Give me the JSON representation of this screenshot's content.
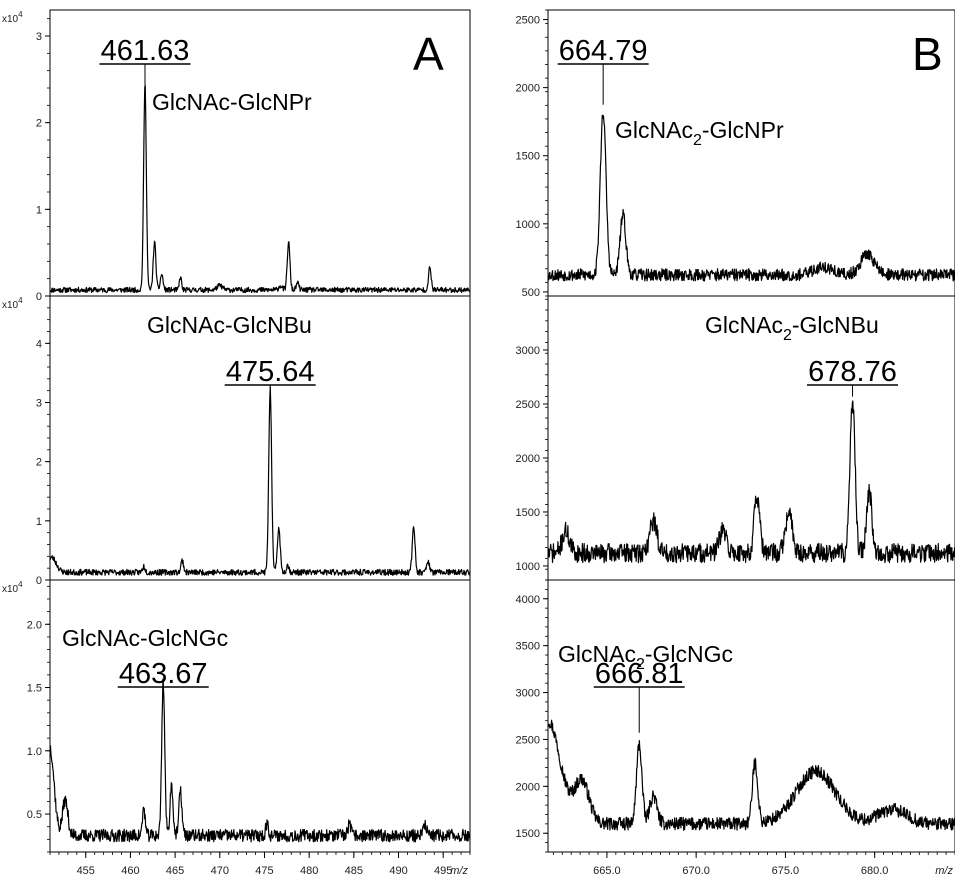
{
  "panel_letters": [
    "A",
    "B"
  ],
  "chart_data": [
    {
      "type": "line",
      "panel": "A",
      "row": 0,
      "xlim": [
        451,
        498
      ],
      "ylim": [
        0,
        3.3
      ],
      "y_multiplier": "x10",
      "y_exponent": "4",
      "yticks": [
        0,
        1,
        2,
        3
      ],
      "ytick_labels": [
        "0",
        "1",
        "2",
        "3"
      ],
      "baseline": 0.07,
      "noise": 0.03,
      "seed": 11,
      "peaks": [
        [
          461.63,
          2.37,
          0.15
        ],
        [
          462.7,
          0.55,
          0.15
        ],
        [
          463.5,
          0.18,
          0.15
        ],
        [
          465.6,
          0.15,
          0.12
        ],
        [
          477.7,
          0.55,
          0.15
        ],
        [
          478.7,
          0.08,
          0.15
        ],
        [
          493.5,
          0.25,
          0.15
        ],
        [
          470.0,
          0.05,
          0.3
        ],
        [
          476.8,
          0.05,
          0.2
        ]
      ],
      "peak_label": "461.63",
      "peak_x": 461.63,
      "peak_top": 2.37,
      "compound": {
        "main": "GlcNAc-GlcNPr",
        "sub": ""
      }
    },
    {
      "type": "line",
      "panel": "A",
      "row": 1,
      "xlim": [
        451,
        498
      ],
      "ylim": [
        0,
        4.8
      ],
      "y_multiplier": "x10",
      "y_exponent": "4",
      "yticks": [
        0,
        1,
        2,
        3,
        4
      ],
      "ytick_labels": [
        "0",
        "1",
        "2",
        "3",
        "4"
      ],
      "baseline": 0.13,
      "noise": 0.05,
      "seed": 23,
      "peaks": [
        [
          451.2,
          0.25,
          0.5
        ],
        [
          475.64,
          3.1,
          0.16
        ],
        [
          476.6,
          0.75,
          0.16
        ],
        [
          491.7,
          0.75,
          0.16
        ],
        [
          493.3,
          0.2,
          0.15
        ],
        [
          465.8,
          0.2,
          0.15
        ],
        [
          461.5,
          0.1,
          0.15
        ],
        [
          477.6,
          0.12,
          0.15
        ]
      ],
      "peak_label": "475.64",
      "peak_x": 475.64,
      "peak_top": 3.22,
      "compound": {
        "main": "GlcNAc-GlcNBu",
        "sub": ""
      }
    },
    {
      "type": "line",
      "panel": "A",
      "row": 2,
      "xlim": [
        451,
        498
      ],
      "ylim": [
        0.2,
        2.35
      ],
      "y_multiplier": "x10",
      "y_exponent": "4",
      "yticks": [
        0.5,
        1.0,
        1.5,
        2.0
      ],
      "ytick_labels": [
        "0.5",
        "1.0",
        "1.5",
        "2.0"
      ],
      "baseline": 0.33,
      "noise": 0.05,
      "seed": 37,
      "peaks": [
        [
          451.0,
          0.7,
          0.45
        ],
        [
          452.7,
          0.28,
          0.3
        ],
        [
          461.5,
          0.22,
          0.15
        ],
        [
          463.67,
          1.22,
          0.17
        ],
        [
          464.6,
          0.4,
          0.17
        ],
        [
          465.6,
          0.35,
          0.17
        ],
        [
          475.3,
          0.1,
          0.15
        ],
        [
          484.5,
          0.08,
          0.2
        ],
        [
          493.0,
          0.08,
          0.2
        ]
      ],
      "peak_label": "463.67",
      "peak_x": 463.67,
      "peak_top": 1.55,
      "compound": {
        "main": "GlcNAc-GlcNGc",
        "sub": ""
      }
    },
    {
      "type": "line",
      "panel": "B",
      "row": 0,
      "xlim": [
        661.7,
        684.5
      ],
      "ylim": [
        470,
        2570
      ],
      "yticks": [
        500,
        1000,
        1500,
        2000,
        2500
      ],
      "ytick_labels": [
        "500",
        "1000",
        "1500",
        "2000",
        "2500"
      ],
      "baseline": 625,
      "noise": 45,
      "seed": 53,
      "peaks": [
        [
          664.79,
          1200,
          0.16
        ],
        [
          665.9,
          440,
          0.16
        ],
        [
          679.6,
          150,
          0.4
        ],
        [
          677.1,
          60,
          0.5
        ]
      ],
      "peak_label": "664.79",
      "peak_x": 664.79,
      "peak_top": 1860,
      "compound": {
        "main": "GlcNAc",
        "sub": "2",
        "suffix": "-GlcNPr"
      }
    },
    {
      "type": "line",
      "panel": "B",
      "row": 1,
      "xlim": [
        661.7,
        684.5
      ],
      "ylim": [
        870,
        3500
      ],
      "yticks": [
        1000,
        1500,
        2000,
        2500,
        3000
      ],
      "ytick_labels": [
        "1000",
        "1500",
        "2000",
        "2500",
        "3000"
      ],
      "baseline": 1120,
      "noise": 90,
      "seed": 71,
      "peaks": [
        [
          678.76,
          1420,
          0.14
        ],
        [
          679.7,
          560,
          0.15
        ],
        [
          673.4,
          540,
          0.15
        ],
        [
          675.2,
          360,
          0.2
        ],
        [
          667.6,
          300,
          0.2
        ],
        [
          662.7,
          200,
          0.2
        ],
        [
          671.5,
          200,
          0.2
        ]
      ],
      "peak_label": "678.76",
      "peak_x": 678.76,
      "peak_top": 2550,
      "compound": {
        "main": "GlcNAc",
        "sub": "2",
        "suffix": "-GlcNBu"
      }
    },
    {
      "type": "line",
      "panel": "B",
      "row": 2,
      "xlim": [
        661.7,
        684.5
      ],
      "ylim": [
        1300,
        4200
      ],
      "yticks": [
        1500,
        2000,
        2500,
        3000,
        3500,
        4000
      ],
      "ytick_labels": [
        "1500",
        "2000",
        "2500",
        "3000",
        "3500",
        "4000"
      ],
      "baseline": 1600,
      "noise": 70,
      "seed": 97,
      "peaks": [
        [
          661.7,
          1100,
          0.7
        ],
        [
          663.6,
          450,
          0.4
        ],
        [
          666.81,
          850,
          0.15
        ],
        [
          667.6,
          300,
          0.2
        ],
        [
          673.3,
          650,
          0.15
        ],
        [
          676.7,
          560,
          1.1
        ],
        [
          681.0,
          150,
          0.8
        ]
      ],
      "peak_label": "666.81",
      "peak_x": 666.81,
      "peak_top": 2550,
      "compound": {
        "main": "GlcNAc",
        "sub": "2",
        "suffix": "-GlcNGc"
      }
    }
  ],
  "x_axes": [
    {
      "panel": "A",
      "ticks": [
        455,
        460,
        465,
        470,
        475,
        480,
        485,
        490,
        495
      ],
      "tick_labels": [
        "455",
        "460",
        "465",
        "470",
        "475",
        "480",
        "485",
        "490",
        "495"
      ],
      "minor_step": 1,
      "unit_label": "m/z"
    },
    {
      "panel": "B",
      "ticks": [
        665,
        670,
        675,
        680
      ],
      "tick_labels": [
        "665.0",
        "670.0",
        "675.0",
        "680.0"
      ],
      "minor_step": 0.5,
      "unit_label": "m/z"
    }
  ]
}
